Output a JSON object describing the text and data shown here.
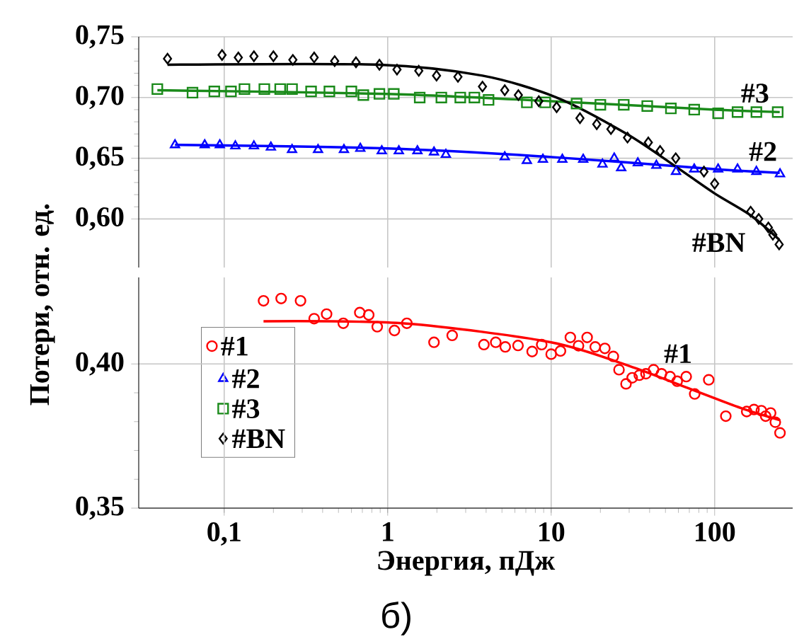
{
  "chart_data": [
    {
      "type": "scatter",
      "ylabel": "Потери, отн. ед.",
      "log": "x",
      "grid": true,
      "tick_labels": "y",
      "legend": "left",
      "xlim": [
        0.03,
        300
      ],
      "ylim": [
        0.56,
        0.75
      ],
      "xticks": [
        0.1,
        1,
        10,
        100
      ],
      "yticks": [
        {
          "value": 0.6,
          "label": "0,60"
        },
        {
          "value": 0.65,
          "label": "0,65"
        },
        {
          "value": 0.7,
          "label": "0,70"
        },
        {
          "value": 0.75,
          "label": "0,75"
        }
      ],
      "series": [
        {
          "name": "#2",
          "marker": "triangle",
          "color": "#0000ff",
          "x": [
            0.05,
            0.076,
            0.094,
            0.117,
            0.152,
            0.193,
            0.26,
            0.375,
            0.54,
            0.68,
            0.92,
            1.17,
            1.52,
            1.92,
            2.27,
            5.2,
            7.1,
            8.9,
            11.7,
            15.7,
            20.6,
            24.3,
            26.8,
            33.9,
            44,
            58,
            75,
            105,
            138,
            180,
            251
          ],
          "values": [
            0.661,
            0.661,
            0.661,
            0.66,
            0.66,
            0.659,
            0.657,
            0.657,
            0.657,
            0.658,
            0.656,
            0.656,
            0.656,
            0.655,
            0.653,
            0.651,
            0.648,
            0.649,
            0.649,
            0.649,
            0.645,
            0.65,
            0.642,
            0.646,
            0.644,
            0.639,
            0.641,
            0.641,
            0.641,
            0.639,
            0.637
          ]
        },
        {
          "type": "line",
          "color": "#0000ff",
          "x": [
            0.05,
            1,
            10,
            100,
            250
          ],
          "values": [
            0.661,
            0.658,
            0.651,
            0.641,
            0.638
          ]
        },
        {
          "name": "#3",
          "marker": "square",
          "color": "#1a8a1a",
          "x": [
            0.039,
            0.064,
            0.087,
            0.11,
            0.133,
            0.176,
            0.22,
            0.26,
            0.34,
            0.44,
            0.6,
            0.71,
            0.89,
            1.09,
            1.57,
            2.13,
            2.78,
            3.39,
            4.14,
            7.1,
            9.2,
            14.3,
            20,
            27.8,
            38.7,
            54,
            75,
            105,
            138,
            180,
            243
          ],
          "values": [
            0.707,
            0.704,
            0.705,
            0.705,
            0.707,
            0.707,
            0.707,
            0.707,
            0.705,
            0.705,
            0.705,
            0.702,
            0.703,
            0.703,
            0.7,
            0.7,
            0.7,
            0.7,
            0.698,
            0.696,
            0.696,
            0.695,
            0.694,
            0.694,
            0.693,
            0.691,
            0.69,
            0.687,
            0.688,
            0.688,
            0.688
          ]
        },
        {
          "type": "line",
          "color": "#1a8a1a",
          "x": [
            0.039,
            1,
            10,
            100,
            250
          ],
          "values": [
            0.706,
            0.703,
            0.697,
            0.69,
            0.688
          ]
        },
        {
          "name": "#BN",
          "marker": "diamond",
          "color": "#000000",
          "x": [
            0.045,
            0.097,
            0.122,
            0.152,
            0.2,
            0.263,
            0.355,
            0.474,
            0.64,
            0.89,
            1.14,
            1.55,
            1.99,
            2.69,
            3.8,
            5.2,
            6.3,
            8.4,
            10.8,
            15,
            19,
            23.2,
            29.3,
            39.3,
            46.4,
            57.8,
            86,
            100,
            166,
            186,
            213,
            227,
            248
          ],
          "values": [
            0.732,
            0.735,
            0.733,
            0.734,
            0.734,
            0.731,
            0.733,
            0.73,
            0.729,
            0.727,
            0.723,
            0.722,
            0.718,
            0.717,
            0.709,
            0.706,
            0.702,
            0.697,
            0.692,
            0.683,
            0.678,
            0.674,
            0.667,
            0.663,
            0.656,
            0.65,
            0.639,
            0.629,
            0.606,
            0.6,
            0.593,
            0.587,
            0.579
          ]
        },
        {
          "type": "line",
          "color": "#000000",
          "x": [
            0.045,
            0.89,
            3.8,
            10.8,
            29,
            58,
            100,
            166,
            248
          ],
          "values": [
            0.727,
            0.727,
            0.718,
            0.7,
            0.67,
            0.643,
            0.621,
            0.603,
            0.583
          ]
        }
      ]
    },
    {
      "type": "scatter",
      "xlabel": "Энергия, пДж",
      "log": "x",
      "grid": true,
      "legend": "left",
      "xlim": [
        0.03,
        300
      ],
      "ylim": [
        0.35,
        0.43
      ],
      "xticks": [
        {
          "value": 0.1,
          "label": "0,1"
        },
        1,
        10,
        100
      ],
      "yticks": [
        {
          "value": 0.35,
          "label": "0,35"
        },
        {
          "value": 0.4,
          "label": "0,40"
        }
      ],
      "annotations": [
        "б)"
      ],
      "series": [
        {
          "name": "#1",
          "marker": "circle",
          "color": "#ff0000",
          "x": [
            0.174,
            0.223,
            0.293,
            0.355,
            0.423,
            0.535,
            0.675,
            0.766,
            0.863,
            1.1,
            1.31,
            1.92,
            2.48,
            3.88,
            4.58,
            5.24,
            6.27,
            7.65,
            8.75,
            10,
            11.4,
            13.1,
            14.7,
            16.6,
            18.6,
            21.3,
            24,
            26,
            28.7,
            31.3,
            34.6,
            38,
            42.3,
            47.3,
            53.4,
            59,
            67,
            75.5,
            92,
            117,
            157,
            174,
            193,
            205,
            220,
            235,
            251
          ],
          "values": [
            0.4219,
            0.4227,
            0.4219,
            0.4157,
            0.4173,
            0.4141,
            0.4178,
            0.417,
            0.4129,
            0.4116,
            0.4141,
            0.4075,
            0.4099,
            0.4067,
            0.4075,
            0.4059,
            0.4064,
            0.4043,
            0.4067,
            0.4034,
            0.4045,
            0.4092,
            0.4063,
            0.4092,
            0.4059,
            0.4054,
            0.4026,
            0.398,
            0.3931,
            0.3952,
            0.3961,
            0.3966,
            0.398,
            0.3966,
            0.3956,
            0.394,
            0.3956,
            0.3896,
            0.3945,
            0.3819,
            0.3835,
            0.3842,
            0.3838,
            0.3819,
            0.383,
            0.3798,
            0.3761
          ]
        },
        {
          "type": "line",
          "color": "#ff0000",
          "x": [
            0.174,
            1.3,
            10,
            30,
            66,
            145,
            251
          ],
          "values": [
            0.4148,
            0.414,
            0.4075,
            0.3993,
            0.392,
            0.3847,
            0.3805
          ]
        }
      ]
    }
  ]
}
